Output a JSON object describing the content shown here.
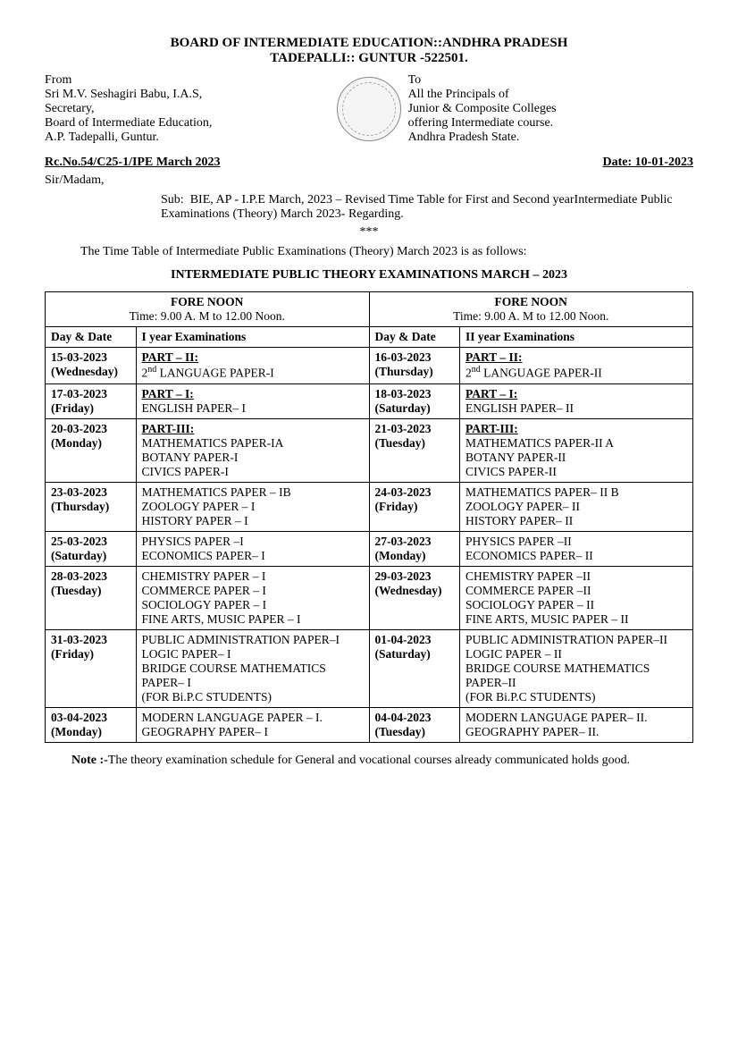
{
  "header": {
    "title1": "BOARD OF INTERMEDIATE EDUCATION::ANDHRA PRADESH",
    "title2": "TADEPALLI::  GUNTUR -522501."
  },
  "from": {
    "label": "From",
    "line1": "Sri M.V. Seshagiri Babu, I.A.S,",
    "line2": "Secretary,",
    "line3": "Board of Intermediate Education,",
    "line4": "A.P. Tadepalli, Guntur."
  },
  "to": {
    "label": "To",
    "line1": "All the Principals of",
    "line2": "Junior & Composite Colleges",
    "line3": "offering Intermediate course.",
    "line4": "Andhra Pradesh State."
  },
  "ref": "Rc.No.54/C25-1/IPE March 2023",
  "date_label": "Date: 10-01-2023",
  "salutation": "Sir/Madam,",
  "sub_prefix": "Sub:",
  "sub_body": "BIE, AP - I.P.E March, 2023 – Revised Time Table for First and Second yearIntermediate Public Examinations (Theory) March 2023- Regarding.",
  "stars": "***",
  "intro": "The Time Table of Intermediate Public Examinations (Theory) March 2023 is as follows:",
  "table_title": "INTERMEDIATE PUBLIC THEORY EXAMINATIONS MARCH – 2023",
  "forenoon_label": "FORE NOON",
  "forenoon_time": "Time: 9.00 A. M to 12.00 Noon.",
  "hdr": {
    "daydate": "Day & Date",
    "y1": "I year Examinations",
    "y2": "II year Examinations"
  },
  "rows": [
    {
      "d1": "15-03-2023",
      "day1": "(Wednesday)",
      "e1_part": "PART – II:",
      "e1_lines": [
        "2nd LANGUAGE PAPER-I"
      ],
      "d2": "16-03-2023",
      "day2": "(Thursday)",
      "e2_part": "PART – II:",
      "e2_lines": [
        "2nd LANGUAGE PAPER-II"
      ]
    },
    {
      "d1": "17-03-2023",
      "day1": "(Friday)",
      "e1_part": "PART – I:",
      "e1_lines": [
        "ENGLISH PAPER– I"
      ],
      "d2": "18-03-2023",
      "day2": "(Saturday)",
      "e2_part": "PART – I:",
      "e2_lines": [
        "ENGLISH PAPER– II"
      ]
    },
    {
      "d1": "20-03-2023",
      "day1": "(Monday)",
      "e1_part": "PART-III:",
      "e1_lines": [
        "MATHEMATICS PAPER-IA",
        "BOTANY PAPER-I",
        "CIVICS PAPER-I"
      ],
      "d2": "21-03-2023",
      "day2": "(Tuesday)",
      "e2_part": "PART-III:",
      "e2_lines": [
        "MATHEMATICS PAPER-II A",
        "BOTANY PAPER-II",
        "CIVICS PAPER-II"
      ]
    },
    {
      "d1": "23-03-2023",
      "day1": "(Thursday)",
      "e1_part": "",
      "e1_lines": [
        "MATHEMATICS PAPER – IB",
        "ZOOLOGY PAPER – I",
        "HISTORY PAPER – I"
      ],
      "d2": "24-03-2023",
      "day2": "(Friday)",
      "e2_part": "",
      "e2_lines": [
        "MATHEMATICS PAPER– II B",
        "ZOOLOGY PAPER– II",
        "HISTORY PAPER– II"
      ]
    },
    {
      "d1": "25-03-2023",
      "day1": "(Saturday)",
      "e1_part": "",
      "e1_lines": [
        "PHYSICS PAPER –I",
        "ECONOMICS PAPER– I"
      ],
      "d2": "27-03-2023",
      "day2": "(Monday)",
      "e2_part": "",
      "e2_lines": [
        "PHYSICS PAPER –II",
        "ECONOMICS PAPER– II"
      ]
    },
    {
      "d1": "28-03-2023",
      "day1": "(Tuesday)",
      "e1_part": "",
      "e1_lines": [
        "CHEMISTRY PAPER – I",
        "COMMERCE PAPER – I",
        "SOCIOLOGY PAPER – I",
        "FINE ARTS, MUSIC PAPER – I"
      ],
      "d2": "29-03-2023",
      "day2": "(Wednesday)",
      "e2_part": "",
      "e2_lines": [
        "CHEMISTRY  PAPER –II",
        "COMMERCE  PAPER –II",
        "SOCIOLOGY  PAPER – II",
        "FINE ARTS, MUSIC PAPER – II"
      ]
    },
    {
      "d1": "31-03-2023",
      "day1": "(Friday)",
      "e1_part": "",
      "e1_lines": [
        "PUBLIC ADMINISTRATION PAPER–I",
        "LOGIC PAPER– I",
        "BRIDGE COURSE MATHEMATICS PAPER– I",
        "(FOR Bi.P.C STUDENTS)"
      ],
      "d2": "01-04-2023",
      "day2": "(Saturday)",
      "e2_part": "",
      "e2_lines": [
        "PUBLIC ADMINISTRATION PAPER–II",
        "LOGIC PAPER – II",
        "BRIDGE COURSE MATHEMATICS PAPER–II",
        "(FOR Bi.P.C STUDENTS)"
      ]
    },
    {
      "d1": "03-04-2023",
      "day1": "(Monday)",
      "e1_part": "",
      "e1_lines": [
        "MODERN LANGUAGE  PAPER – I.",
        "GEOGRAPHY PAPER– I"
      ],
      "d2": "04-04-2023",
      "day2": "(Tuesday)",
      "e2_part": "",
      "e2_lines": [
        "MODERN LANGUAGE PAPER– II.",
        "GEOGRAPHY PAPER– II."
      ]
    }
  ],
  "note_label": "Note :-",
  "note_text": "The theory examination schedule for General and vocational courses already communicated holds good."
}
